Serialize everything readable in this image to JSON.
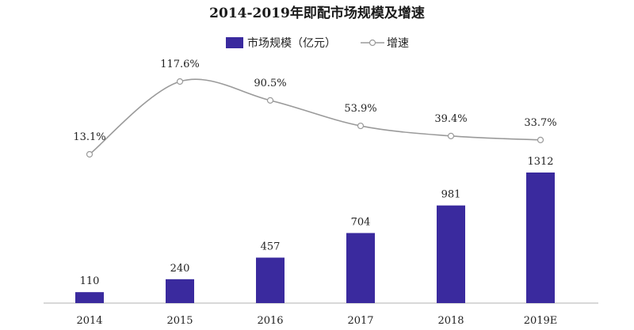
{
  "chart_data": {
    "type": "bar",
    "title": "2014-2019年即配市场规模及增速",
    "categories": [
      "2014",
      "2015",
      "2016",
      "2017",
      "2018",
      "2019E"
    ],
    "series": [
      {
        "name": "市场规模（亿元）",
        "kind": "bar",
        "color": "#3a2a9e",
        "values": [
          110,
          240,
          457,
          704,
          981,
          1312
        ],
        "labels": [
          "110",
          "240",
          "457",
          "704",
          "981",
          "1312"
        ]
      },
      {
        "name": "增速",
        "kind": "line",
        "color": "#9a9a9a",
        "values": [
          13.1,
          117.6,
          90.5,
          53.9,
          39.4,
          33.7
        ],
        "labels": [
          "13.1%",
          "117.6%",
          "90.5%",
          "53.9%",
          "39.4%",
          "33.7%"
        ]
      }
    ],
    "legend": "top-center",
    "grid": false
  }
}
